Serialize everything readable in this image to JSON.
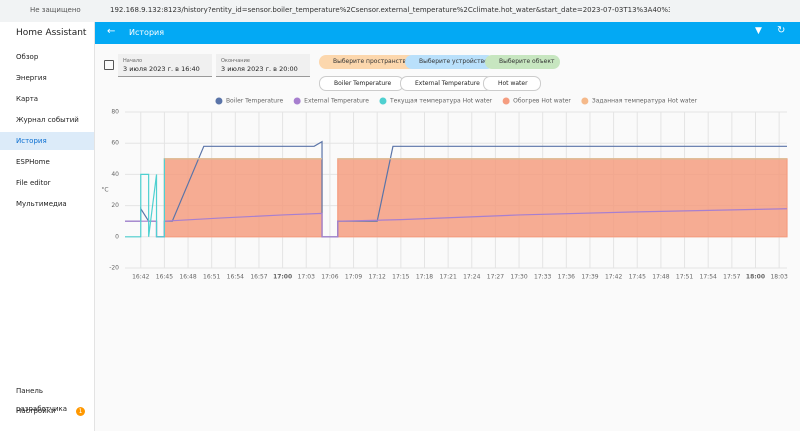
{
  "browser": {
    "security": "Не защищено",
    "url": "192.168.9.132:8123/history?entity_id=sensor.boiler_temperature%2Csensor.external_temperature%2Cclimate.hot_water&start_date=2023-07-03T13%3A40%3A00.000..."
  },
  "sidebar": {
    "title": "Home Assistant",
    "items": [
      "Обзор",
      "Энергия",
      "Карта",
      "Журнал событий",
      "История",
      "ESPHome",
      "File editor",
      "Мультимедиа"
    ],
    "bottom_items": [
      "Панель разработчика",
      "Настройки"
    ],
    "badge": "1"
  },
  "header": {
    "title": "История"
  },
  "filters": {
    "start_label": "Начало",
    "start_value": "3 июля 2023 г. в 16:40",
    "end_label": "Окончание",
    "end_value": "3 июля 2023 г. в 20:00",
    "buttons": [
      "Выберите пространство",
      "Выберите устройство",
      "Выберите объект"
    ],
    "chips": [
      "Boiler Temperature",
      "External Temperature",
      "Hot water"
    ]
  },
  "chart_data": {
    "type": "line",
    "y_label": "°C",
    "xlim": [
      "16:40",
      "18:04"
    ],
    "xticks": [
      "16:42",
      "16:45",
      "16:48",
      "16:51",
      "16:54",
      "16:57",
      "17:00",
      "17:03",
      "17:06",
      "17:09",
      "17:12",
      "17:15",
      "17:18",
      "17:21",
      "17:24",
      "17:27",
      "17:30",
      "17:33",
      "17:36",
      "17:39",
      "17:42",
      "17:45",
      "17:48",
      "17:51",
      "17:54",
      "17:57",
      "18:00",
      "18:03"
    ],
    "ylim": [
      -20,
      80
    ],
    "yticks": [
      -20,
      0,
      20,
      40,
      60,
      80
    ],
    "grid": true,
    "series": [
      {
        "name": "Boiler Temperature",
        "color": "#5a74a8",
        "style": "line",
        "x": [
          "16:40",
          "16:42",
          "16:42",
          "16:43",
          "16:44",
          "16:44",
          "16:45",
          "16:45",
          "16:46",
          "16:50",
          "17:04",
          "17:05",
          "17:05",
          "17:07",
          "17:07",
          "17:12",
          "17:14",
          "18:04"
        ],
        "values": [
          10,
          10,
          18,
          10,
          10,
          0,
          0,
          10,
          10,
          58,
          58,
          61,
          0,
          0,
          10,
          10,
          58,
          58
        ]
      },
      {
        "name": "External Temperature",
        "color": "#a77fcf",
        "style": "line",
        "x": [
          "16:40",
          "16:44",
          "16:44",
          "16:45",
          "16:45",
          "16:52",
          "17:00",
          "17:05",
          "17:05",
          "17:07",
          "17:07",
          "17:15",
          "17:30",
          "17:45",
          "18:04"
        ],
        "values": [
          10,
          10,
          0,
          0,
          10,
          12,
          14,
          15,
          0,
          0,
          10,
          11,
          14,
          16,
          18
        ]
      },
      {
        "name": "Текущая температура Hot water",
        "color": "#4fd0d0",
        "style": "line",
        "x": [
          "16:40",
          "16:42",
          "16:42",
          "16:43",
          "16:43",
          "16:44",
          "16:44",
          "16:45",
          "16:45",
          "17:05",
          "17:05",
          "17:07",
          "18:04"
        ],
        "values": [
          0,
          0,
          40,
          40,
          0,
          40,
          0,
          0,
          50,
          50,
          null,
          50,
          50
        ]
      },
      {
        "name": "Обогрев Hot water",
        "color": "#f59d80",
        "style": "area",
        "x": [
          "16:45",
          "17:05",
          "17:05",
          "17:07",
          "18:04"
        ],
        "values": [
          50,
          50,
          null,
          50,
          50
        ]
      },
      {
        "name": "Заданная температура Hot water",
        "color": "#f5b98a",
        "style": "line",
        "x": [
          "16:45",
          "17:05",
          "17:05",
          "17:07",
          "18:04"
        ],
        "values": [
          50,
          50,
          null,
          50,
          50
        ]
      }
    ]
  }
}
